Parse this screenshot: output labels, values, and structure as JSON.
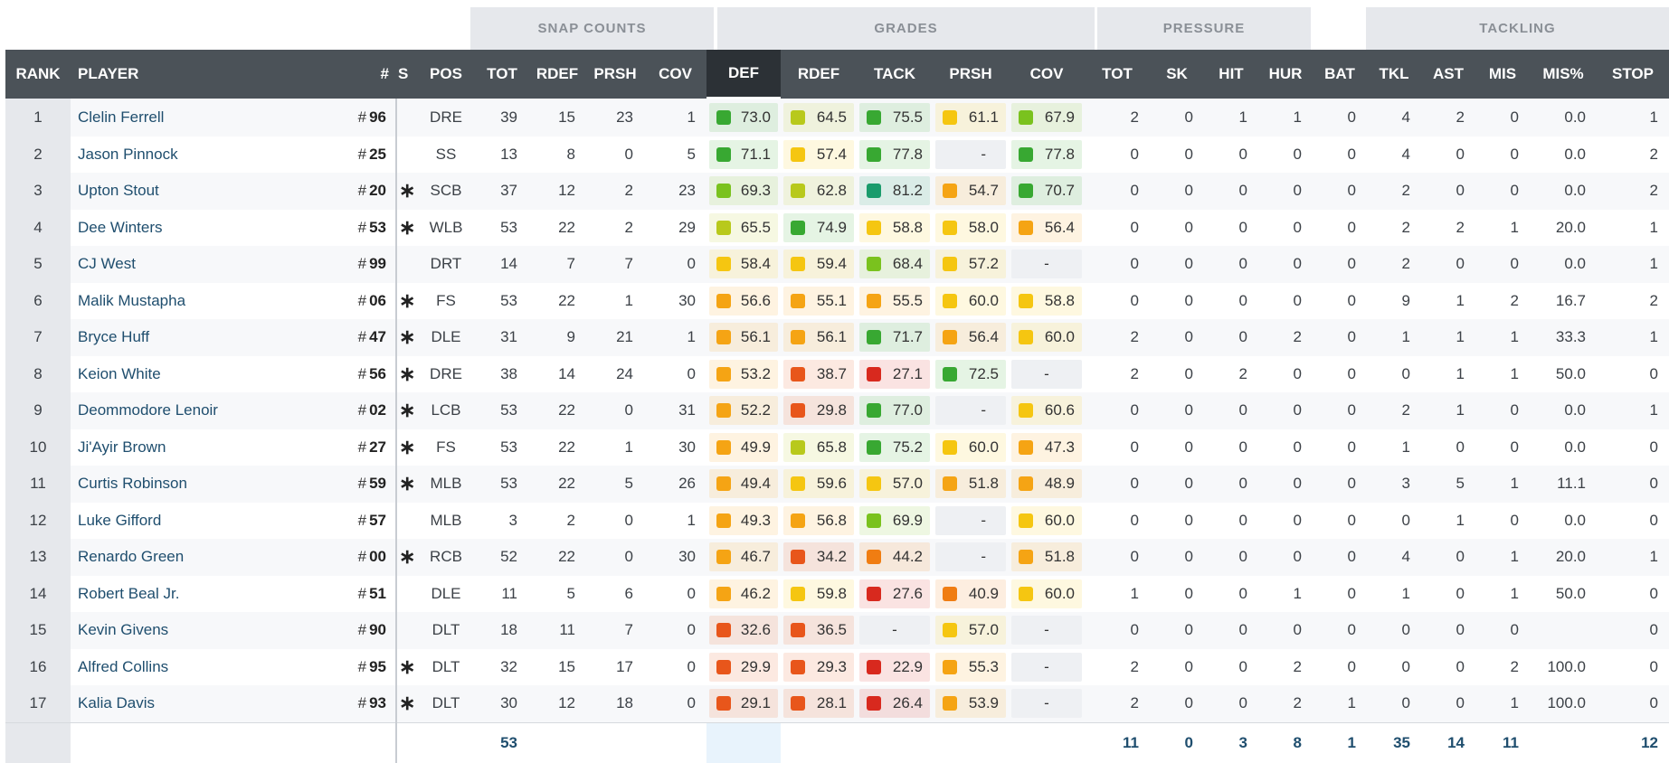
{
  "groups": {
    "snap_counts": "SNAP COUNTS",
    "grades": "GRADES",
    "pressure": "PRESSURE",
    "tackling": "TACKLING"
  },
  "columns": {
    "rank": "RANK",
    "player": "PLAYER",
    "number": "#",
    "starter": "S",
    "pos": "POS",
    "snap_tot": "TOT",
    "snap_rdef": "RDEF",
    "snap_prsh": "PRSH",
    "snap_cov": "COV",
    "g_def": "DEF",
    "g_rdef": "RDEF",
    "g_tack": "TACK",
    "g_prsh": "PRSH",
    "g_cov": "COV",
    "p_tot": "TOT",
    "p_sk": "SK",
    "p_hit": "HIT",
    "p_hur": "HUR",
    "p_bat": "BAT",
    "t_tkl": "TKL",
    "t_ast": "AST",
    "t_mis": "MIS",
    "t_misp": "MIS%",
    "t_stop": "STOP"
  },
  "grade_colors": {
    "elite": "#1a9b6c",
    "high": "#38a832",
    "good": "#7ac21e",
    "above": "#b8c91c",
    "avg": "#f5c611",
    "below": "#f5a414",
    "poor": "#f07d12",
    "bad": "#e8561b",
    "worst": "#d8291e"
  },
  "number_prefix": "#",
  "starter_mark": "∗",
  "dash": "-",
  "rows": [
    {
      "rank": "1",
      "player": "Clelin Ferrell",
      "num": "96",
      "s": "",
      "pos": "DRE",
      "tot": "39",
      "rdef": "15",
      "prsh": "23",
      "cov": "1",
      "gdef": "73.0",
      "grdef": "64.5",
      "gtack": "75.5",
      "gprsh": "61.1",
      "gcov": "67.9",
      "ptot": "2",
      "sk": "0",
      "hit": "1",
      "hur": "1",
      "bat": "0",
      "tkl": "4",
      "ast": "2",
      "mis": "0",
      "misp": "0.0",
      "stop": "1"
    },
    {
      "rank": "2",
      "player": "Jason Pinnock",
      "num": "25",
      "s": "",
      "pos": "SS",
      "tot": "13",
      "rdef": "8",
      "prsh": "0",
      "cov": "5",
      "gdef": "71.1",
      "grdef": "57.4",
      "gtack": "77.8",
      "gprsh": "-",
      "gcov": "77.8",
      "ptot": "0",
      "sk": "0",
      "hit": "0",
      "hur": "0",
      "bat": "0",
      "tkl": "4",
      "ast": "0",
      "mis": "0",
      "misp": "0.0",
      "stop": "2"
    },
    {
      "rank": "3",
      "player": "Upton Stout",
      "num": "20",
      "s": "∗",
      "pos": "SCB",
      "tot": "37",
      "rdef": "12",
      "prsh": "2",
      "cov": "23",
      "gdef": "69.3",
      "grdef": "62.8",
      "gtack": "81.2",
      "gprsh": "54.7",
      "gcov": "70.7",
      "ptot": "0",
      "sk": "0",
      "hit": "0",
      "hur": "0",
      "bat": "0",
      "tkl": "2",
      "ast": "0",
      "mis": "0",
      "misp": "0.0",
      "stop": "2"
    },
    {
      "rank": "4",
      "player": "Dee Winters",
      "num": "53",
      "s": "∗",
      "pos": "WLB",
      "tot": "53",
      "rdef": "22",
      "prsh": "2",
      "cov": "29",
      "gdef": "65.5",
      "grdef": "74.9",
      "gtack": "58.8",
      "gprsh": "58.0",
      "gcov": "56.4",
      "ptot": "0",
      "sk": "0",
      "hit": "0",
      "hur": "0",
      "bat": "0",
      "tkl": "2",
      "ast": "2",
      "mis": "1",
      "misp": "20.0",
      "stop": "1"
    },
    {
      "rank": "5",
      "player": "CJ West",
      "num": "99",
      "s": "",
      "pos": "DRT",
      "tot": "14",
      "rdef": "7",
      "prsh": "7",
      "cov": "0",
      "gdef": "58.4",
      "grdef": "59.4",
      "gtack": "68.4",
      "gprsh": "57.2",
      "gcov": "-",
      "ptot": "0",
      "sk": "0",
      "hit": "0",
      "hur": "0",
      "bat": "0",
      "tkl": "2",
      "ast": "0",
      "mis": "0",
      "misp": "0.0",
      "stop": "1"
    },
    {
      "rank": "6",
      "player": "Malik Mustapha",
      "num": "06",
      "s": "∗",
      "pos": "FS",
      "tot": "53",
      "rdef": "22",
      "prsh": "1",
      "cov": "30",
      "gdef": "56.6",
      "grdef": "55.1",
      "gtack": "55.5",
      "gprsh": "60.0",
      "gcov": "58.8",
      "ptot": "0",
      "sk": "0",
      "hit": "0",
      "hur": "0",
      "bat": "0",
      "tkl": "9",
      "ast": "1",
      "mis": "2",
      "misp": "16.7",
      "stop": "2"
    },
    {
      "rank": "7",
      "player": "Bryce Huff",
      "num": "47",
      "s": "∗",
      "pos": "DLE",
      "tot": "31",
      "rdef": "9",
      "prsh": "21",
      "cov": "1",
      "gdef": "56.1",
      "grdef": "56.1",
      "gtack": "71.7",
      "gprsh": "56.4",
      "gcov": "60.0",
      "ptot": "2",
      "sk": "0",
      "hit": "0",
      "hur": "2",
      "bat": "0",
      "tkl": "1",
      "ast": "1",
      "mis": "1",
      "misp": "33.3",
      "stop": "1"
    },
    {
      "rank": "8",
      "player": "Keion White",
      "num": "56",
      "s": "∗",
      "pos": "DRE",
      "tot": "38",
      "rdef": "14",
      "prsh": "24",
      "cov": "0",
      "gdef": "53.2",
      "grdef": "38.7",
      "gtack": "27.1",
      "gprsh": "72.5",
      "gcov": "-",
      "ptot": "2",
      "sk": "0",
      "hit": "2",
      "hur": "0",
      "bat": "0",
      "tkl": "0",
      "ast": "1",
      "mis": "1",
      "misp": "50.0",
      "stop": "0"
    },
    {
      "rank": "9",
      "player": "Deommodore Lenoir",
      "num": "02",
      "s": "∗",
      "pos": "LCB",
      "tot": "53",
      "rdef": "22",
      "prsh": "0",
      "cov": "31",
      "gdef": "52.2",
      "grdef": "29.8",
      "gtack": "77.0",
      "gprsh": "-",
      "gcov": "60.6",
      "ptot": "0",
      "sk": "0",
      "hit": "0",
      "hur": "0",
      "bat": "0",
      "tkl": "2",
      "ast": "1",
      "mis": "0",
      "misp": "0.0",
      "stop": "1"
    },
    {
      "rank": "10",
      "player": "Ji'Ayir Brown",
      "num": "27",
      "s": "∗",
      "pos": "FS",
      "tot": "53",
      "rdef": "22",
      "prsh": "1",
      "cov": "30",
      "gdef": "49.9",
      "grdef": "65.8",
      "gtack": "75.2",
      "gprsh": "60.0",
      "gcov": "47.3",
      "ptot": "0",
      "sk": "0",
      "hit": "0",
      "hur": "0",
      "bat": "0",
      "tkl": "1",
      "ast": "0",
      "mis": "0",
      "misp": "0.0",
      "stop": "0"
    },
    {
      "rank": "11",
      "player": "Curtis Robinson",
      "num": "59",
      "s": "∗",
      "pos": "MLB",
      "tot": "53",
      "rdef": "22",
      "prsh": "5",
      "cov": "26",
      "gdef": "49.4",
      "grdef": "59.6",
      "gtack": "57.0",
      "gprsh": "51.8",
      "gcov": "48.9",
      "ptot": "0",
      "sk": "0",
      "hit": "0",
      "hur": "0",
      "bat": "0",
      "tkl": "3",
      "ast": "5",
      "mis": "1",
      "misp": "11.1",
      "stop": "0"
    },
    {
      "rank": "12",
      "player": "Luke Gifford",
      "num": "57",
      "s": "",
      "pos": "MLB",
      "tot": "3",
      "rdef": "2",
      "prsh": "0",
      "cov": "1",
      "gdef": "49.3",
      "grdef": "56.8",
      "gtack": "69.9",
      "gprsh": "-",
      "gcov": "60.0",
      "ptot": "0",
      "sk": "0",
      "hit": "0",
      "hur": "0",
      "bat": "0",
      "tkl": "0",
      "ast": "1",
      "mis": "0",
      "misp": "0.0",
      "stop": "0"
    },
    {
      "rank": "13",
      "player": "Renardo Green",
      "num": "00",
      "s": "∗",
      "pos": "RCB",
      "tot": "52",
      "rdef": "22",
      "prsh": "0",
      "cov": "30",
      "gdef": "46.7",
      "grdef": "34.2",
      "gtack": "44.2",
      "gprsh": "-",
      "gcov": "51.8",
      "ptot": "0",
      "sk": "0",
      "hit": "0",
      "hur": "0",
      "bat": "0",
      "tkl": "4",
      "ast": "0",
      "mis": "1",
      "misp": "20.0",
      "stop": "1"
    },
    {
      "rank": "14",
      "player": "Robert Beal Jr.",
      "num": "51",
      "s": "",
      "pos": "DLE",
      "tot": "11",
      "rdef": "5",
      "prsh": "6",
      "cov": "0",
      "gdef": "46.2",
      "grdef": "59.8",
      "gtack": "27.6",
      "gprsh": "40.9",
      "gcov": "60.0",
      "ptot": "1",
      "sk": "0",
      "hit": "0",
      "hur": "1",
      "bat": "0",
      "tkl": "1",
      "ast": "0",
      "mis": "1",
      "misp": "50.0",
      "stop": "0"
    },
    {
      "rank": "15",
      "player": "Kevin Givens",
      "num": "90",
      "s": "",
      "pos": "DLT",
      "tot": "18",
      "rdef": "11",
      "prsh": "7",
      "cov": "0",
      "gdef": "32.6",
      "grdef": "36.5",
      "gtack": "-",
      "gprsh": "57.0",
      "gcov": "-",
      "ptot": "0",
      "sk": "0",
      "hit": "0",
      "hur": "0",
      "bat": "0",
      "tkl": "0",
      "ast": "0",
      "mis": "0",
      "misp": "",
      "stop": "0"
    },
    {
      "rank": "16",
      "player": "Alfred Collins",
      "num": "95",
      "s": "∗",
      "pos": "DLT",
      "tot": "32",
      "rdef": "15",
      "prsh": "17",
      "cov": "0",
      "gdef": "29.9",
      "grdef": "29.3",
      "gtack": "22.9",
      "gprsh": "55.3",
      "gcov": "-",
      "ptot": "2",
      "sk": "0",
      "hit": "0",
      "hur": "2",
      "bat": "0",
      "tkl": "0",
      "ast": "0",
      "mis": "2",
      "misp": "100.0",
      "stop": "0"
    },
    {
      "rank": "17",
      "player": "Kalia Davis",
      "num": "93",
      "s": "∗",
      "pos": "DLT",
      "tot": "30",
      "rdef": "12",
      "prsh": "18",
      "cov": "0",
      "gdef": "29.1",
      "grdef": "28.1",
      "gtack": "26.4",
      "gprsh": "53.9",
      "gcov": "-",
      "ptot": "2",
      "sk": "0",
      "hit": "0",
      "hur": "2",
      "bat": "1",
      "tkl": "0",
      "ast": "0",
      "mis": "1",
      "misp": "100.0",
      "stop": "0"
    }
  ],
  "totals": {
    "tot": "53",
    "ptot": "11",
    "sk": "0",
    "hit": "3",
    "hur": "8",
    "bat": "1",
    "tkl": "35",
    "ast": "14",
    "mis": "11",
    "stop": "12"
  }
}
